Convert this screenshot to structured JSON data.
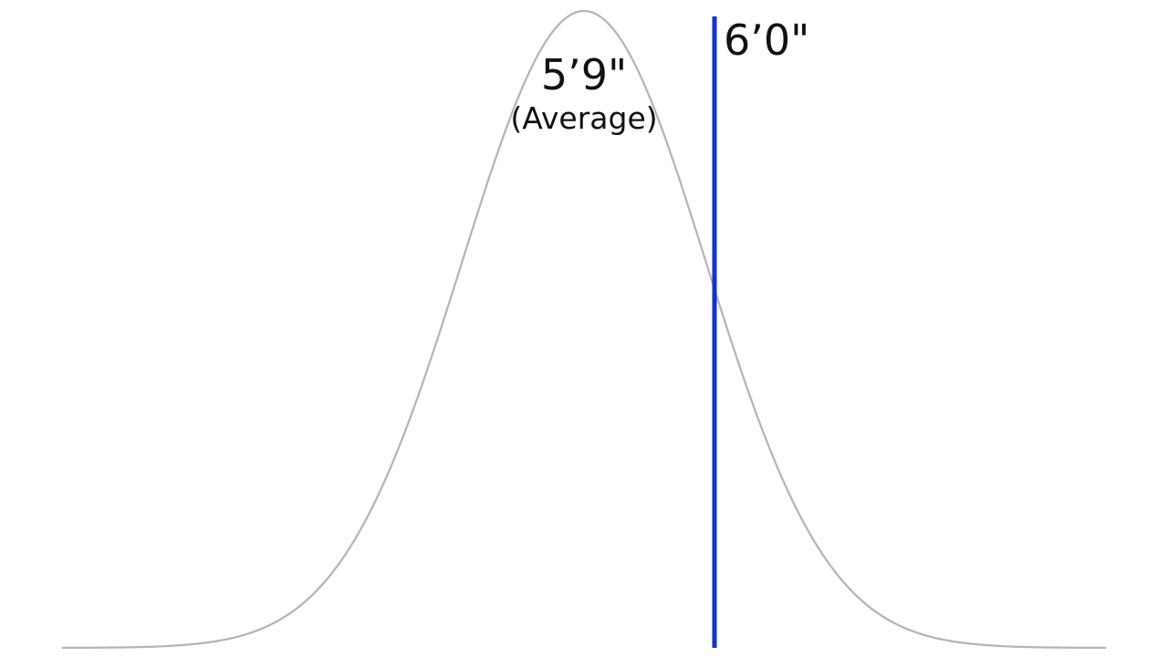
{
  "chart_data": {
    "type": "line",
    "title": "",
    "xlabel": "",
    "ylabel": "",
    "x_unit": "inches",
    "mean": 69,
    "std_dev": 2.8,
    "xlim": [
      57,
      81
    ],
    "grid": false,
    "legend": "none",
    "colors": {
      "curve": "#b3b3b3",
      "marker": "#1032d8"
    },
    "annotations": [
      {
        "id": "mean",
        "x": 69,
        "label": "5’9\"",
        "sublabel": "(Average)"
      },
      {
        "id": "marker",
        "x": 72,
        "label": "6’0\""
      }
    ]
  }
}
